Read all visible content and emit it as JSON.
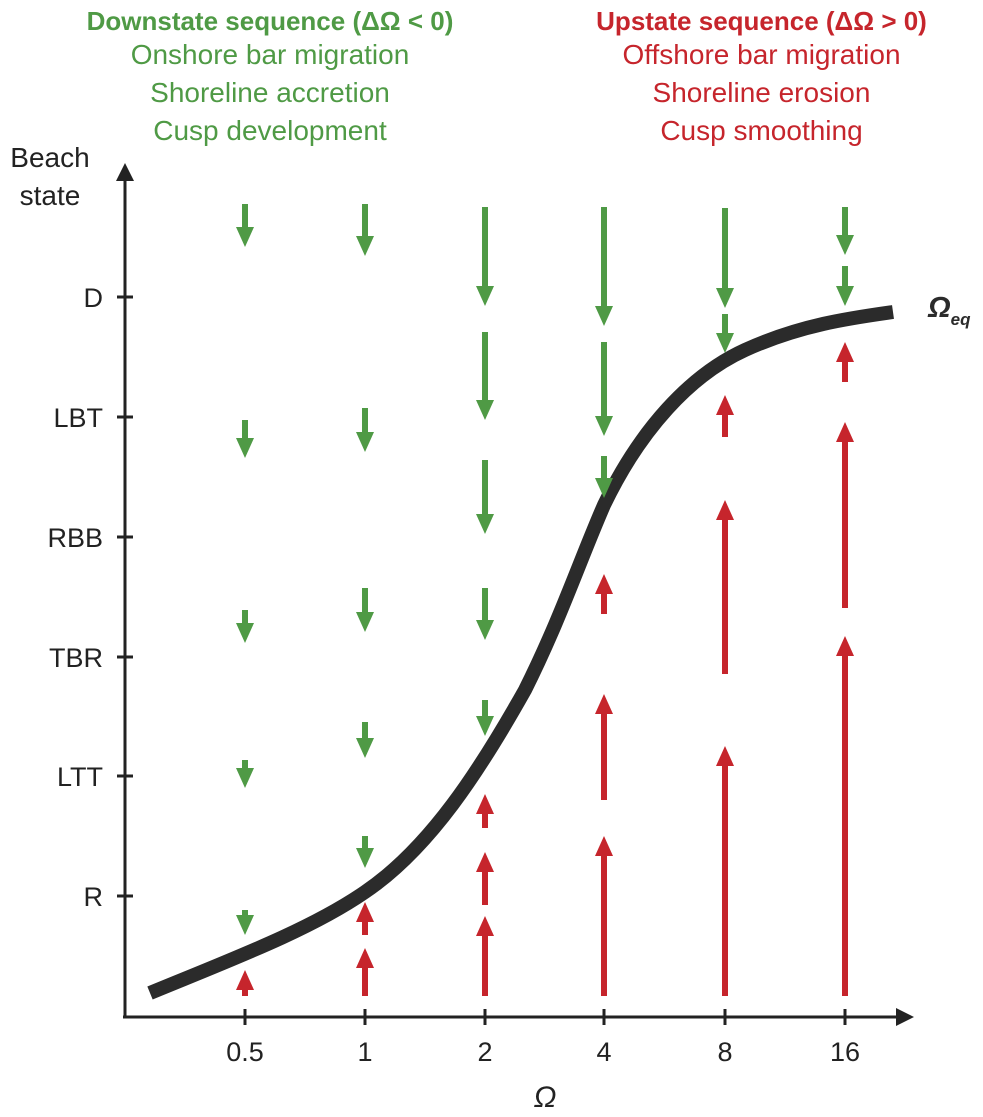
{
  "downstate": {
    "title": "Downstate sequence (ΔΩ < 0)",
    "lines": [
      "Onshore bar migration",
      "Shoreline accretion",
      "Cusp development"
    ],
    "color": "#4f9a45"
  },
  "upstate": {
    "title": "Upstate sequence (ΔΩ > 0)",
    "lines": [
      "Offshore bar migration",
      "Shoreline erosion",
      "Cusp smoothing"
    ],
    "color": "#c6252c"
  },
  "axes": {
    "y_label_line1": "Beach",
    "y_label_line2": "state",
    "x_label": "Ω",
    "y_ticks": [
      "D",
      "LBT",
      "RBB",
      "TBR",
      "LTT",
      "R"
    ],
    "x_ticks": [
      "0.5",
      "1",
      "2",
      "4",
      "8",
      "16"
    ]
  },
  "curve": {
    "label_main": "Ω",
    "label_sub": "eq",
    "color": "#2b2b2b"
  }
}
